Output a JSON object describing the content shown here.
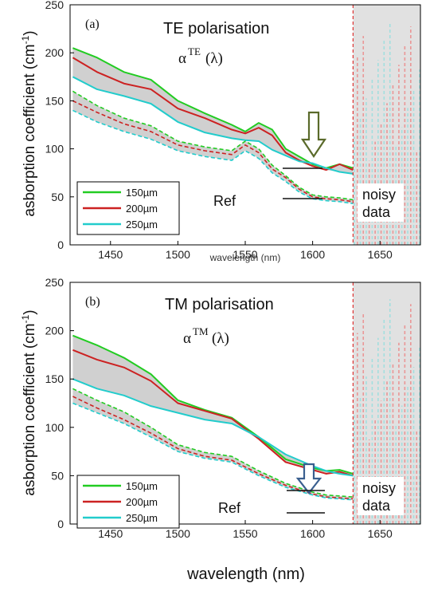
{
  "chart_data": [
    {
      "type": "line",
      "panel_label": "(a)",
      "title": "TE polarisation",
      "formula": {
        "base": "α",
        "sup": "TE",
        "arg": "(λ)"
      },
      "ylabel": "asborption coefficient (cm-1)",
      "xlabel": "wavelength (nm)",
      "xlim": [
        1420,
        1680
      ],
      "ylim": [
        0,
        250
      ],
      "xticks": [
        1450,
        1500,
        1550,
        1600,
        1650
      ],
      "yticks": [
        0,
        50,
        100,
        150,
        200,
        250
      ],
      "legend_position": "bottom-left",
      "annotations": {
        "ref": "Ref",
        "noisy": "noisy\ndata"
      },
      "noisy_region_start": 1630,
      "arrow_x": 1600,
      "series": [
        {
          "name": "150µm",
          "color": "#22cc22",
          "dashed": false,
          "x": [
            1422,
            1440,
            1460,
            1480,
            1500,
            1520,
            1540,
            1550,
            1560,
            1570,
            1580,
            1590,
            1600,
            1610,
            1620,
            1630
          ],
          "y": [
            205,
            195,
            180,
            172,
            150,
            137,
            125,
            118,
            127,
            120,
            100,
            92,
            84,
            80,
            84,
            80
          ]
        },
        {
          "name": "200µm",
          "color": "#cc2222",
          "dashed": false,
          "x": [
            1422,
            1440,
            1460,
            1480,
            1500,
            1520,
            1540,
            1550,
            1560,
            1570,
            1580,
            1590,
            1600,
            1610,
            1620,
            1630
          ],
          "y": [
            195,
            180,
            168,
            162,
            142,
            132,
            120,
            116,
            122,
            114,
            96,
            88,
            82,
            78,
            84,
            78
          ]
        },
        {
          "name": "250µm",
          "color": "#22cccc",
          "dashed": false,
          "x": [
            1422,
            1440,
            1460,
            1480,
            1500,
            1520,
            1540,
            1550,
            1560,
            1570,
            1580,
            1590,
            1600,
            1610,
            1620,
            1630
          ],
          "y": [
            175,
            162,
            155,
            147,
            128,
            117,
            111,
            109,
            108,
            99,
            93,
            87,
            85,
            80,
            76,
            74
          ]
        },
        {
          "name": "150µm ref",
          "color": "#22cc22",
          "dashed": true,
          "x": [
            1422,
            1440,
            1460,
            1480,
            1500,
            1520,
            1540,
            1550,
            1560,
            1570,
            1580,
            1590,
            1600,
            1610,
            1620,
            1630
          ],
          "y": [
            160,
            145,
            132,
            124,
            108,
            102,
            98,
            108,
            100,
            83,
            72,
            60,
            52,
            50,
            49,
            47
          ]
        },
        {
          "name": "200µm ref",
          "color": "#cc2222",
          "dashed": true,
          "x": [
            1422,
            1440,
            1460,
            1480,
            1500,
            1520,
            1540,
            1550,
            1560,
            1570,
            1580,
            1590,
            1600,
            1610,
            1620,
            1630
          ],
          "y": [
            150,
            138,
            126,
            118,
            104,
            98,
            94,
            104,
            96,
            79,
            70,
            58,
            50,
            48,
            47,
            45
          ]
        },
        {
          "name": "250µm ref",
          "color": "#22cccc",
          "dashed": true,
          "x": [
            1422,
            1440,
            1460,
            1480,
            1500,
            1520,
            1540,
            1550,
            1560,
            1570,
            1580,
            1590,
            1600,
            1610,
            1620,
            1630
          ],
          "y": [
            140,
            128,
            118,
            110,
            98,
            92,
            88,
            98,
            90,
            75,
            66,
            55,
            48,
            46,
            45,
            43
          ]
        }
      ]
    },
    {
      "type": "line",
      "panel_label": "(b)",
      "title": "TM polarisation",
      "formula": {
        "base": "α",
        "sup": "TM",
        "arg": "(λ)"
      },
      "ylabel": "asborption coefficient (cm-1)",
      "xlabel": "wavelength (nm)",
      "xlim": [
        1420,
        1680
      ],
      "ylim": [
        0,
        250
      ],
      "xticks": [
        1450,
        1500,
        1550,
        1600,
        1650
      ],
      "yticks": [
        0,
        50,
        100,
        150,
        200,
        250
      ],
      "legend_position": "bottom-left",
      "annotations": {
        "ref": "Ref",
        "noisy": "noisy\ndata"
      },
      "noisy_region_start": 1630,
      "arrow_x": 1597,
      "series": [
        {
          "name": "150µm",
          "color": "#22cc22",
          "dashed": false,
          "x": [
            1422,
            1440,
            1460,
            1480,
            1500,
            1520,
            1540,
            1560,
            1580,
            1600,
            1610,
            1620,
            1630
          ],
          "y": [
            195,
            185,
            172,
            155,
            128,
            118,
            110,
            90,
            67,
            58,
            55,
            56,
            52
          ]
        },
        {
          "name": "200µm",
          "color": "#cc2222",
          "dashed": false,
          "x": [
            1422,
            1440,
            1460,
            1480,
            1500,
            1520,
            1540,
            1560,
            1580,
            1600,
            1610,
            1620,
            1630
          ],
          "y": [
            180,
            170,
            162,
            148,
            125,
            117,
            109,
            88,
            64,
            56,
            52,
            54,
            50
          ]
        },
        {
          "name": "250µm",
          "color": "#22cccc",
          "dashed": false,
          "x": [
            1422,
            1440,
            1460,
            1480,
            1500,
            1520,
            1540,
            1560,
            1580,
            1600,
            1610,
            1620,
            1630
          ],
          "y": [
            150,
            140,
            133,
            122,
            115,
            108,
            104,
            90,
            72,
            60,
            55,
            52,
            50
          ]
        },
        {
          "name": "150µm ref",
          "color": "#22cc22",
          "dashed": true,
          "x": [
            1422,
            1440,
            1460,
            1480,
            1500,
            1520,
            1540,
            1560,
            1580,
            1600,
            1610,
            1620,
            1630
          ],
          "y": [
            140,
            128,
            116,
            100,
            82,
            74,
            70,
            55,
            42,
            33,
            30,
            29,
            28
          ]
        },
        {
          "name": "200µm ref",
          "color": "#cc2222",
          "dashed": true,
          "x": [
            1422,
            1440,
            1460,
            1480,
            1500,
            1520,
            1540,
            1560,
            1580,
            1600,
            1610,
            1620,
            1630
          ],
          "y": [
            132,
            120,
            108,
            94,
            78,
            70,
            66,
            52,
            40,
            31,
            28,
            27,
            26
          ]
        },
        {
          "name": "250µm ref",
          "color": "#22cccc",
          "dashed": true,
          "x": [
            1422,
            1440,
            1460,
            1480,
            1500,
            1520,
            1540,
            1560,
            1580,
            1600,
            1610,
            1620,
            1630
          ],
          "y": [
            125,
            115,
            104,
            90,
            75,
            68,
            64,
            50,
            38,
            30,
            27,
            26,
            25
          ]
        }
      ]
    }
  ]
}
